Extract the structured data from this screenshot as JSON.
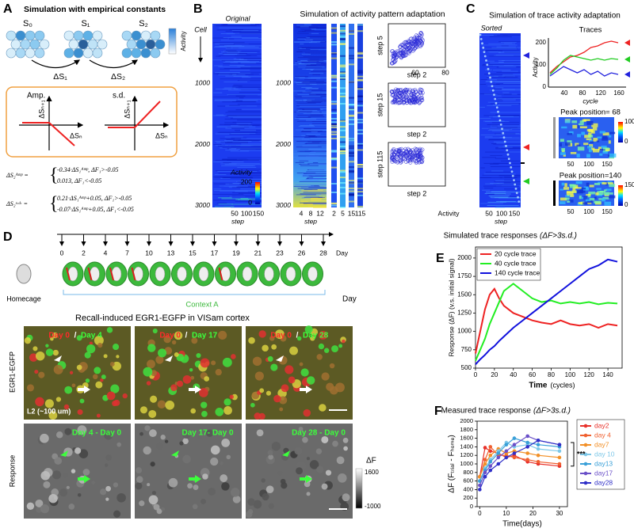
{
  "panel_a": {
    "label": "A",
    "title": "Simulation with empirical constants",
    "states": [
      "S₀",
      "S₁",
      "S₂"
    ],
    "deltas": [
      "ΔS₁",
      "ΔS₂"
    ],
    "colorbar_label": "Activity",
    "plots": [
      {
        "title": "Amp.",
        "ylabel": "ΔSₙ₊₁",
        "xlabel": "ΔSₙ"
      },
      {
        "title": "s.d.",
        "ylabel": "ΔSₙ₊₁",
        "xlabel": "ΔSₙ"
      }
    ],
    "equations": [
      {
        "lhs": "ΔS₂ᴬᵐᵖ =",
        "cases": [
          "-0.34·ΔS₁ᴬᵐᵖ,   ΔF₁>-0.05",
          "0.013,               ΔF₁<-0.05"
        ]
      },
      {
        "lhs": "ΔS₂ˢ·ᵈ· =",
        "cases": [
          "0.21·ΔS₁ᴬᵐᵖ+0.05,   ΔF₁>-0.05",
          "-0.07·ΔS₁ᴬᵐᵖ+0.05,   ΔF₁<-0.05"
        ]
      }
    ]
  },
  "panel_b": {
    "label": "B",
    "original_title": "Original",
    "cell_label": "Cell",
    "yticks": [
      1000,
      2000,
      3000
    ],
    "title": "Simulation of activity pattern adaptation",
    "colorbar": {
      "label": "Activity",
      "ticks": [
        200,
        0
      ]
    },
    "original_xticks": [
      50,
      100,
      150
    ],
    "xlabel": "step",
    "sim_xticks": [
      4,
      8,
      12
    ],
    "strip_labels": [
      2,
      5,
      15,
      115
    ],
    "scatter_ylabels": [
      "step 5",
      "step 15",
      "step 115"
    ],
    "scatter_xlabel": "step 2",
    "scatter_xticks": [
      60,
      80
    ],
    "scatter_axis_label": "Activity"
  },
  "panel_c": {
    "label": "C",
    "title": "Simulation of trace activity adaptation",
    "sorted": "Sorted",
    "xticks": [
      50,
      100,
      150
    ],
    "xlabel": "step",
    "traces": {
      "title": "Traces",
      "ylabel": "Activity",
      "yticks": [
        0,
        100,
        200
      ],
      "xticks": [
        40,
        80,
        120,
        160
      ],
      "xlabel": "cycle"
    },
    "heatmaps": [
      {
        "title": "Peak position= 68",
        "cbar_ticks": [
          100,
          0
        ],
        "xticks": [
          50,
          100,
          150
        ]
      },
      {
        "title": "Peak position=140",
        "cbar_ticks": [
          150,
          0
        ],
        "xticks": [
          50,
          100,
          150
        ]
      }
    ]
  },
  "panel_d": {
    "label": "D",
    "days": [
      0,
      2,
      4,
      7,
      10,
      13,
      15,
      17,
      19,
      21,
      23,
      26,
      28
    ],
    "day_unit": "Day",
    "homecage": "Homecage",
    "context": "Context A",
    "title": "Recall-induced EGR1-EGFP in VISam cortex",
    "day_corner": "Day",
    "images": [
      {
        "ref": "Day 0",
        "sep": "/",
        "cmp": "Day 4",
        "diff": "Day 4 - Day 0"
      },
      {
        "ref": "Day 0",
        "sep": "/",
        "cmp": "Day 17",
        "diff": "Day 17- Day 0"
      },
      {
        "ref": "Day 0",
        "sep": "/",
        "cmp": "Day 28",
        "diff": "Day 28 - Day 0"
      }
    ],
    "row_labels": [
      "EGR1-EGFP",
      "Response"
    ],
    "depth": "L2 (~100 um)",
    "cbar": {
      "label": "ΔF",
      "ticks": [
        1600,
        -1000
      ]
    }
  },
  "chart_data": [
    {
      "type": "line",
      "label": "E",
      "title": "Simulated trace responses",
      "title_note": "(ΔF>3s.d.)",
      "xlabel": "Time",
      "xlabel_note": "(cycles)",
      "ylabel": "Response (ΔF) (v.s. initial signal)",
      "x": [
        0,
        5,
        10,
        15,
        20,
        25,
        30,
        40,
        50,
        60,
        70,
        80,
        90,
        100,
        110,
        120,
        130,
        140,
        150
      ],
      "xlim": [
        0,
        155
      ],
      "xticks": [
        0,
        20,
        40,
        60,
        80,
        100,
        120,
        140
      ],
      "ylim": [
        500,
        2150
      ],
      "yticks": [
        500,
        750,
        1000,
        1250,
        1500,
        1750,
        2000
      ],
      "legend": "upper left",
      "markers": false,
      "series": [
        {
          "name": "20 cycle trace",
          "color": "#ee2222",
          "values": [
            700,
            1000,
            1300,
            1500,
            1580,
            1450,
            1350,
            1250,
            1200,
            1150,
            1120,
            1100,
            1150,
            1100,
            1080,
            1100,
            1050,
            1100,
            1080
          ]
        },
        {
          "name": "40 cycle trace",
          "color": "#22ee22",
          "values": [
            600,
            750,
            900,
            1100,
            1250,
            1400,
            1550,
            1650,
            1550,
            1450,
            1400,
            1420,
            1380,
            1400,
            1380,
            1400,
            1370,
            1390,
            1380
          ]
        },
        {
          "name": "140 cycle trace",
          "color": "#1111dd",
          "values": [
            550,
            620,
            680,
            750,
            800,
            870,
            930,
            1050,
            1150,
            1250,
            1350,
            1450,
            1550,
            1650,
            1750,
            1850,
            1900,
            1980,
            1950
          ]
        }
      ]
    },
    {
      "type": "line",
      "label": "F",
      "title": "Measured trace response",
      "title_note": "(ΔF>3s.d.)",
      "xlabel": "Time(days)",
      "ylabel": "ΔF (Fₜᵣᵢₐₗ - Fₕₒₘₑ)",
      "x": [
        0,
        2,
        4,
        7,
        10,
        13,
        18,
        22,
        30
      ],
      "xlim": [
        -1,
        33
      ],
      "xticks": [
        0,
        10,
        20,
        30
      ],
      "ylim": [
        0,
        2000
      ],
      "yticks": [
        0,
        200,
        400,
        600,
        800,
        1000,
        1200,
        1400,
        1600,
        1800,
        2000
      ],
      "legend": "outside right",
      "markers": true,
      "annotation": "***",
      "series": [
        {
          "name": "day2",
          "color": "#e8312a",
          "values": [
            700,
            1380,
            1300,
            1250,
            1150,
            1200,
            1050,
            1000,
            950
          ]
        },
        {
          "name": "day 4",
          "color": "#f06030",
          "values": [
            700,
            1100,
            1400,
            1200,
            1200,
            1150,
            1100,
            1050,
            1000
          ]
        },
        {
          "name": "day7",
          "color": "#f29028",
          "values": [
            700,
            1000,
            1200,
            1350,
            1250,
            1300,
            1250,
            1200,
            1150
          ]
        },
        {
          "name": "day 10",
          "color": "#7ec8e8",
          "values": [
            600,
            900,
            1100,
            1300,
            1500,
            1400,
            1450,
            1350,
            1300
          ]
        },
        {
          "name": "day13",
          "color": "#3aa0d8",
          "values": [
            600,
            850,
            1050,
            1250,
            1450,
            1600,
            1500,
            1450,
            1400
          ]
        },
        {
          "name": "day17",
          "color": "#6a50c8",
          "values": [
            500,
            800,
            950,
            1150,
            1300,
            1450,
            1650,
            1550,
            1450
          ]
        },
        {
          "name": "day28",
          "color": "#3030c8",
          "values": [
            400,
            700,
            850,
            1000,
            1150,
            1250,
            1400,
            1550,
            1450
          ]
        }
      ]
    }
  ]
}
